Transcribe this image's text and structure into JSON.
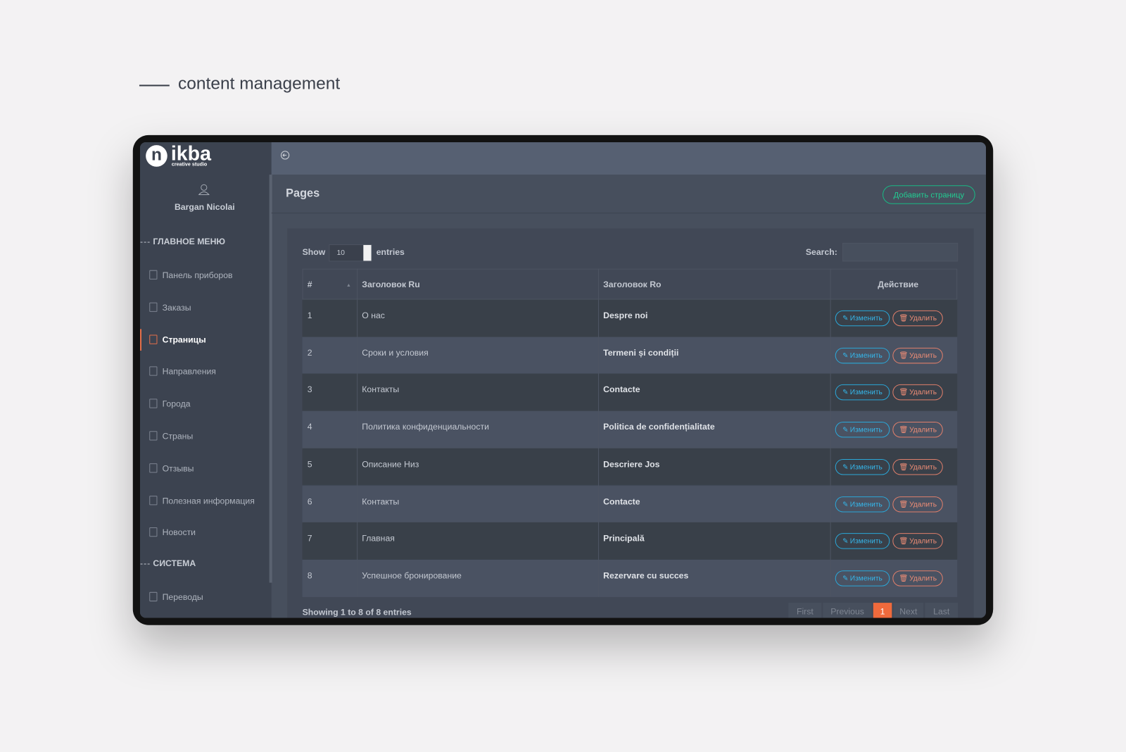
{
  "heading": "content management",
  "logo": {
    "mark": "n",
    "name": "ikba",
    "tagline": "creative studio"
  },
  "user": "Bargan Nicolai",
  "menu": {
    "title": "ГЛАВНОЕ МЕНЮ",
    "items": [
      "Панель приборов",
      "Заказы",
      "Страницы",
      "Направления",
      "Города",
      "Страны",
      "Отзывы",
      "Полезная информация",
      "Новости"
    ],
    "active_item": 2
  },
  "system": {
    "title": "СИСТЕМА",
    "items": [
      "Переводы"
    ]
  },
  "page": {
    "title": "Pages",
    "add_button": "Добавить страницу"
  },
  "table": {
    "show_label": "Show",
    "page_length": 10,
    "entries_label": "entries",
    "search_label": "Search:",
    "columns": [
      "#",
      "Заголовок Ru",
      "Заголовок Ro",
      "Действие"
    ],
    "rows": [
      [
        1,
        "О нас",
        "Despre noi"
      ],
      [
        2,
        "Сроки и условия",
        "Termeni și condiții"
      ],
      [
        3,
        "Контакты",
        "Contacte"
      ],
      [
        4,
        "Политика конфиденциальности",
        "Politica de confidențialitate"
      ],
      [
        5,
        "Описание Низ",
        "Descriere Jos"
      ],
      [
        6,
        "Контакты",
        "Contacte"
      ],
      [
        7,
        "Главная",
        "Principală"
      ],
      [
        8,
        "Успешное бронирование",
        "Rezervare cu succes"
      ]
    ],
    "edit_label": "Изменить",
    "delete_label": "Удалить",
    "info": "Showing 1 to 8 of 8 entries",
    "pagination": {
      "first": "First",
      "previous": "Previous",
      "pages": [
        1
      ],
      "next": "Next",
      "last": "Last"
    }
  }
}
